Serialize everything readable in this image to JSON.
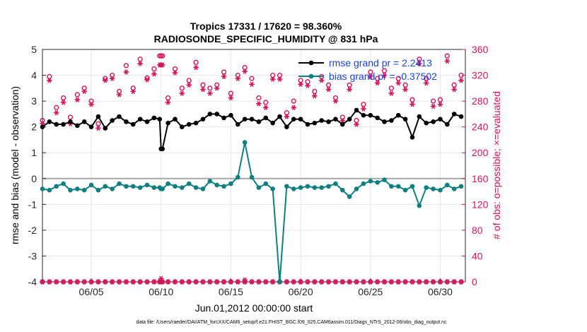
{
  "chart_data": {
    "type": "line",
    "title": "Tropics 17331 / 17620 = 98.360%",
    "subtitle": "RADIOSONDE_SPECIFIC_HUMIDITY @ 831 hPa",
    "xlabel": "Jun.01,2012 00:00:00 start",
    "ylabel": "rmse and bias (model - observation)",
    "y2label": "# of obs: o=possible; ×=evaluated",
    "xlim": [
      0.5,
      30.8
    ],
    "ylim": [
      -4,
      5
    ],
    "y2lim": [
      0,
      360
    ],
    "x_ticks": [
      4,
      9,
      14,
      19,
      24,
      29
    ],
    "x_tick_labels": [
      "06/05",
      "06/10",
      "06/15",
      "06/20",
      "06/25",
      "06/30"
    ],
    "y_ticks": [
      -4,
      -3,
      -2,
      -1,
      0,
      1,
      2,
      3,
      4,
      5
    ],
    "y2_ticks": [
      0,
      40,
      80,
      120,
      160,
      200,
      240,
      280,
      320,
      360
    ],
    "grid": true,
    "legend": [
      "rmse grand pr = 2.2413",
      "bias grand pr = -0.37502"
    ],
    "footnote": "data file: /Users/raeder/DAI/ATM_forcXX/CAM6_setup/f.e21.FHIST_BGC.f09_025.CAM6assim.011/Diags_NTrS_2012-06/obs_diag_output.nc",
    "colors": {
      "rmse": "#000000",
      "bias": "#0f7f7f",
      "obs": "#d0155a",
      "zero_line": "#a6a6a6",
      "legend_text": "#1a44d6"
    },
    "series": [
      {
        "name": "rmse",
        "x": [
          0.5,
          1.0,
          1.5,
          2.0,
          2.5,
          3.0,
          3.5,
          4.0,
          4.5,
          5.0,
          5.5,
          6.0,
          6.5,
          7.0,
          7.5,
          8.0,
          8.5,
          8.9,
          9.0,
          9.1,
          9.5,
          10.0,
          10.5,
          11.0,
          11.5,
          12.0,
          12.5,
          13.0,
          13.5,
          14.0,
          14.5,
          15.0,
          15.5,
          16.0,
          16.5,
          17.0,
          17.5,
          18.0,
          18.5,
          19.0,
          19.5,
          20.0,
          20.5,
          21.0,
          21.5,
          22.0,
          22.5,
          23.0,
          23.5,
          24.0,
          24.5,
          25.0,
          25.5,
          26.0,
          26.5,
          27.0,
          27.5,
          28.0,
          28.5,
          29.0,
          29.5,
          30.0,
          30.5
        ],
        "values": [
          2.0,
          2.2,
          2.1,
          2.1,
          2.2,
          2.05,
          2.2,
          2.0,
          2.4,
          1.95,
          2.25,
          2.4,
          2.2,
          2.1,
          2.3,
          2.2,
          2.35,
          2.3,
          1.15,
          1.15,
          2.15,
          2.3,
          2.0,
          2.1,
          2.15,
          2.3,
          2.5,
          2.5,
          2.35,
          2.45,
          2.1,
          2.3,
          2.3,
          2.2,
          2.35,
          2.15,
          2.4,
          2.0,
          2.3,
          2.3,
          2.1,
          2.15,
          2.25,
          2.2,
          2.3,
          2.1,
          2.3,
          2.65,
          2.45,
          2.45,
          2.35,
          2.2,
          2.25,
          2.45,
          2.3,
          1.6,
          2.4,
          2.15,
          2.2,
          2.3,
          2.1,
          2.5,
          2.4
        ]
      },
      {
        "name": "bias",
        "x": [
          0.5,
          1.0,
          1.5,
          2.0,
          2.5,
          3.0,
          3.5,
          4.0,
          4.5,
          5.0,
          5.5,
          6.0,
          6.5,
          7.0,
          7.5,
          8.0,
          8.5,
          8.9,
          9.0,
          9.1,
          9.5,
          10.0,
          10.5,
          11.0,
          11.5,
          12.0,
          12.5,
          13.0,
          13.5,
          14.0,
          14.5,
          15.0,
          15.5,
          16.0,
          16.5,
          17.0,
          17.5,
          18.0,
          18.5,
          19.0,
          19.5,
          20.0,
          20.5,
          21.0,
          21.5,
          22.0,
          22.5,
          23.0,
          23.5,
          24.0,
          24.5,
          25.0,
          25.5,
          26.0,
          26.5,
          27.0,
          27.5,
          28.0,
          28.5,
          29.0,
          29.5,
          30.0,
          30.5
        ],
        "values": [
          -0.4,
          -0.45,
          -0.3,
          -0.2,
          -0.45,
          -0.4,
          -0.45,
          -0.25,
          -0.45,
          -0.3,
          -0.4,
          -0.2,
          -0.3,
          -0.3,
          -0.35,
          -0.25,
          -0.35,
          -0.35,
          -0.4,
          -0.4,
          -0.2,
          -0.3,
          -0.35,
          -0.2,
          -0.35,
          -0.4,
          -0.1,
          -0.25,
          -0.3,
          -0.2,
          0.05,
          1.4,
          0.05,
          -0.35,
          -0.2,
          -0.4,
          -4.0,
          -0.3,
          -0.4,
          -0.35,
          -0.3,
          -0.35,
          -0.35,
          -0.3,
          -0.2,
          -0.45,
          -0.7,
          -0.4,
          -0.2,
          -0.1,
          -0.15,
          -0.05,
          -0.3,
          -0.3,
          -0.45,
          -0.3,
          -1.05,
          -0.35,
          -0.4,
          -0.45,
          -0.25,
          -0.4,
          -0.3
        ]
      },
      {
        "name": "obs possible",
        "axis": "right",
        "x": [
          0.5,
          1.0,
          1.5,
          2.0,
          2.5,
          3.0,
          3.5,
          4.0,
          4.5,
          5.0,
          5.5,
          6.0,
          6.5,
          7.0,
          7.5,
          8.0,
          8.5,
          8.9,
          9.0,
          9.1,
          9.5,
          10.0,
          10.5,
          11.0,
          11.5,
          12.0,
          12.5,
          13.0,
          13.5,
          14.0,
          14.5,
          15.0,
          15.5,
          16.0,
          16.5,
          17.0,
          17.5,
          18.0,
          18.5,
          19.0,
          19.5,
          20.0,
          20.5,
          21.0,
          21.5,
          22.0,
          22.5,
          23.0,
          23.5,
          24.0,
          24.5,
          25.0,
          25.5,
          26.0,
          26.5,
          27.0,
          27.5,
          28.0,
          28.5,
          29.0,
          29.5,
          30.0,
          30.5
        ],
        "values": [
          250,
          318,
          270,
          285,
          255,
          290,
          300,
          280,
          245,
          315,
          320,
          295,
          335,
          300,
          345,
          316,
          330,
          350,
          350,
          350,
          285,
          330,
          300,
          312,
          340,
          305,
          300,
          305,
          325,
          292,
          320,
          332,
          315,
          285,
          278,
          320,
          320,
          262,
          280,
          312,
          310,
          295,
          318,
          305,
          285,
          255,
          305,
          250,
          275,
          325,
          315,
          327,
          300,
          315,
          305,
          282,
          345,
          315,
          280,
          282,
          350,
          305,
          320
        ]
      },
      {
        "name": "obs evaluated",
        "axis": "right",
        "x": [
          0.5,
          1.0,
          1.5,
          2.0,
          2.5,
          3.0,
          3.5,
          4.0,
          4.5,
          5.0,
          5.5,
          6.0,
          6.5,
          7.0,
          7.5,
          8.0,
          8.5,
          8.9,
          9.0,
          9.1,
          9.5,
          10.0,
          10.5,
          11.0,
          11.5,
          12.0,
          12.5,
          13.0,
          13.5,
          14.0,
          14.5,
          15.0,
          15.5,
          16.0,
          16.5,
          17.0,
          17.5,
          18.0,
          18.5,
          19.0,
          19.5,
          20.0,
          20.5,
          21.0,
          21.5,
          22.0,
          22.5,
          23.0,
          23.5,
          24.0,
          24.5,
          25.0,
          25.5,
          26.0,
          26.5,
          27.0,
          27.5,
          28.0,
          28.5,
          29.0,
          29.5,
          30.0,
          30.5
        ],
        "values": [
          245,
          312,
          262,
          278,
          245,
          282,
          295,
          275,
          238,
          312,
          315,
          290,
          325,
          295,
          338,
          313,
          322,
          336,
          336,
          336,
          278,
          324,
          292,
          305,
          332,
          298,
          292,
          300,
          318,
          285,
          315,
          326,
          306,
          276,
          270,
          314,
          314,
          256,
          270,
          306,
          304,
          288,
          312,
          298,
          280,
          250,
          298,
          244,
          268,
          318,
          308,
          320,
          292,
          308,
          298,
          275,
          338,
          308,
          272,
          275,
          342,
          298,
          312
        ]
      },
      {
        "name": "obs rmse count",
        "axis": "right",
        "x": [
          9.0,
          15.0
        ],
        "values": [
          5,
          3
        ]
      }
    ]
  }
}
